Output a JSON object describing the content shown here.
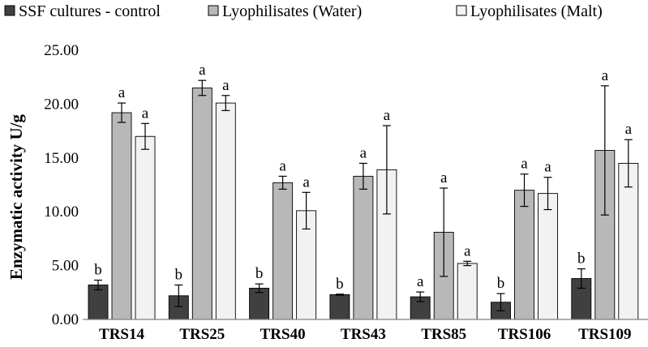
{
  "chart_data": {
    "type": "bar",
    "title": "",
    "xlabel": "",
    "ylabel": "Enzymatic activity U/g",
    "ylim": [
      0,
      25
    ],
    "yticks": [
      "0.00",
      "5.00",
      "10.00",
      "15.00",
      "20.00",
      "25.00"
    ],
    "grid": false,
    "legend_position": "top",
    "categories": [
      "TRS14",
      "TRS25",
      "TRS40",
      "TRS43",
      "TRS85",
      "TRS106",
      "TRS109"
    ],
    "series": [
      {
        "name": "SSF cultures - control",
        "color": "#404040",
        "values": [
          3.2,
          2.2,
          2.9,
          2.3,
          2.1,
          1.6,
          3.8
        ],
        "errors": [
          0.45,
          1.0,
          0.4,
          0.05,
          0.45,
          0.8,
          0.9
        ],
        "labels": [
          "b",
          "b",
          "b",
          "b",
          "a",
          "b",
          "b"
        ]
      },
      {
        "name": "Lyophilisates (Water)",
        "color": "#b8b8b8",
        "values": [
          19.2,
          21.5,
          12.7,
          13.3,
          8.1,
          12.0,
          15.7
        ],
        "errors": [
          0.9,
          0.7,
          0.6,
          1.2,
          4.1,
          1.5,
          6.0
        ],
        "labels": [
          "a",
          "a",
          "a",
          "a",
          "a",
          "a",
          "a"
        ]
      },
      {
        "name": "Lyophilisates (Malt)",
        "color": "#f2f2f2",
        "values": [
          17.0,
          20.1,
          10.1,
          13.9,
          5.2,
          11.7,
          14.5
        ],
        "errors": [
          1.2,
          0.7,
          1.7,
          4.1,
          0.2,
          1.5,
          2.2
        ],
        "labels": [
          "a",
          "a",
          "a",
          "a",
          "a",
          "a",
          "a"
        ]
      }
    ]
  }
}
